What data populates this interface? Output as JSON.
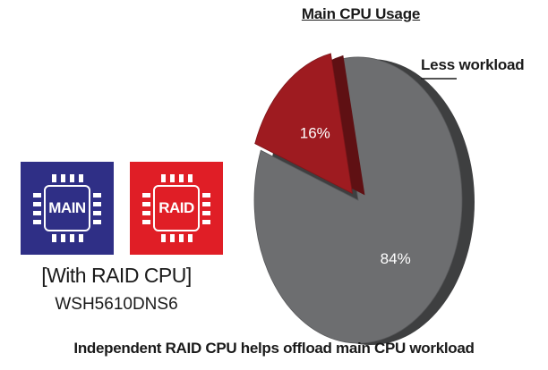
{
  "chart_data": {
    "type": "pie",
    "title": "Main CPU Usage",
    "slices": [
      {
        "label": "84%",
        "value": 84,
        "color": "#6d6e70"
      },
      {
        "label": "16%",
        "value": 16,
        "color": "#9e1b20"
      }
    ],
    "annotation": "Less workload"
  },
  "chips": {
    "main": {
      "label": "MAIN",
      "color": "#2f2f86"
    },
    "raid": {
      "label": "RAID",
      "color": "#e01e26"
    }
  },
  "caption": {
    "subtitle": "[With RAID CPU]",
    "model": "WSH5610DNS6",
    "footer": "Independent RAID CPU helps offload main CPU workload"
  }
}
